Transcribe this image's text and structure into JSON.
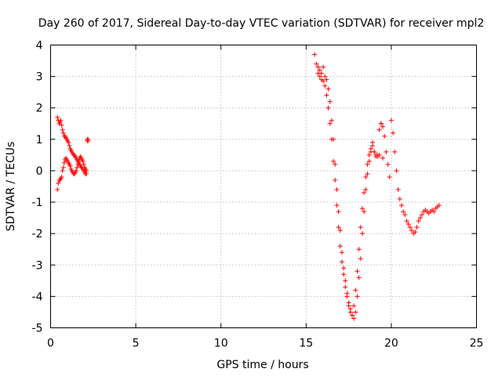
{
  "chart_data": {
    "type": "scatter",
    "title": "Day 260 of 2017, Sidereal Day-to-day VTEC variation (SDTVAR) for receiver mpl2",
    "xlabel": "GPS time / hours",
    "ylabel": "SDTVAR / TECUs",
    "xlim": [
      0,
      25
    ],
    "ylim": [
      -5,
      4
    ],
    "x_ticks": [
      "0",
      "5",
      "10",
      "15",
      "20",
      "25"
    ],
    "y_ticks": [
      "4",
      "3",
      "2",
      "1",
      "0",
      "-1",
      "-2",
      "-3",
      "-4",
      "-5"
    ],
    "grid": true,
    "marker": "plus",
    "marker_color": "#ff0000",
    "series": [
      {
        "x": [
          0.4,
          0.45,
          0.5,
          0.55,
          0.6,
          0.65,
          0.7,
          0.75,
          0.8,
          0.85,
          0.9,
          0.95,
          1.0,
          1.05,
          1.1,
          1.15,
          1.2,
          1.25,
          1.3,
          1.35,
          1.4,
          1.45,
          1.5,
          1.55,
          1.6,
          1.65,
          1.7,
          1.75,
          1.8,
          1.85,
          1.9,
          1.95,
          2.0,
          2.05,
          2.1,
          2.15,
          2.2
        ],
        "y": [
          1.7,
          1.6,
          1.5,
          1.55,
          1.6,
          1.45,
          1.3,
          1.2,
          1.1,
          1.1,
          1.05,
          1.0,
          0.95,
          0.9,
          0.8,
          0.7,
          0.65,
          0.6,
          0.55,
          0.5,
          0.5,
          0.45,
          0.4,
          0.35,
          0.3,
          0.25,
          0.2,
          0.15,
          0.1,
          0.1,
          0.05,
          0.0,
          -0.05,
          -0.1,
          -0.1,
          1.0,
          0.95
        ]
      },
      {
        "x": [
          0.4,
          0.45,
          0.5,
          0.55,
          0.6,
          0.65,
          0.7,
          0.75,
          0.8,
          0.85,
          0.9,
          0.95,
          1.0,
          1.05,
          1.1,
          1.15,
          1.2,
          1.25,
          1.3,
          1.35,
          1.4,
          1.45,
          1.5,
          1.55,
          1.6,
          1.65,
          1.7,
          1.75,
          1.8,
          1.85,
          1.9,
          1.95,
          2.0,
          2.05,
          2.1,
          2.15,
          2.2
        ],
        "y": [
          -0.6,
          -0.4,
          -0.3,
          -0.3,
          -0.25,
          -0.2,
          0.0,
          0.1,
          0.25,
          0.35,
          0.4,
          0.35,
          0.3,
          0.25,
          0.2,
          0.15,
          0.05,
          0.0,
          -0.05,
          -0.1,
          -0.1,
          -0.05,
          0.0,
          0.1,
          0.2,
          0.3,
          0.4,
          0.45,
          0.4,
          0.35,
          0.3,
          0.2,
          0.1,
          0.05,
          0.0,
          0.95,
          1.0
        ]
      },
      {
        "x": [
          15.5,
          15.6,
          15.7,
          15.8,
          15.9,
          16.0,
          16.1,
          16.2,
          16.3,
          16.4,
          16.5,
          16.6,
          16.7,
          16.8,
          16.9,
          17.0,
          17.1,
          17.2,
          17.3,
          17.4,
          17.5,
          17.6,
          17.7,
          17.8,
          17.9,
          18.0,
          18.1,
          18.2,
          18.3,
          18.4,
          18.5,
          18.6,
          18.7,
          18.8,
          18.9,
          19.0,
          19.1,
          19.2,
          19.3,
          19.4,
          19.5,
          19.6,
          19.7,
          19.8,
          19.9,
          20.0,
          20.1,
          20.2,
          20.3,
          20.4,
          20.5,
          20.6,
          20.7,
          20.8,
          20.9,
          21.0,
          21.1,
          21.2,
          21.3,
          21.4,
          21.5,
          21.6,
          21.7,
          21.8,
          21.9,
          22.0,
          22.1,
          22.2,
          22.3,
          22.4,
          22.5,
          22.6,
          22.7,
          22.8
        ],
        "y": [
          3.7,
          3.4,
          3.3,
          3.2,
          3.1,
          3.3,
          3.0,
          2.9,
          2.6,
          2.2,
          1.6,
          1.0,
          0.2,
          -0.6,
          -1.3,
          -1.9,
          -2.6,
          -3.1,
          -3.5,
          -3.9,
          -4.2,
          -4.4,
          -4.6,
          -4.7,
          -4.5,
          -4.0,
          -3.4,
          -2.8,
          -2.0,
          -1.3,
          -0.6,
          -0.1,
          0.3,
          0.6,
          0.8,
          0.6,
          0.5,
          0.45,
          0.5,
          1.5,
          1.4,
          1.1,
          0.6,
          0.2,
          -0.2,
          1.6,
          1.2,
          0.6,
          0.0,
          -0.6,
          -0.9,
          -1.1,
          -1.3,
          -1.4,
          -1.6,
          -1.7,
          -1.8,
          -1.9,
          -2.0,
          -1.95,
          -1.8,
          -1.6,
          -1.5,
          -1.4,
          -1.3,
          -1.25,
          -1.3,
          -1.35,
          -1.3,
          -1.25,
          -1.3,
          -1.2,
          -1.15,
          -1.1
        ]
      },
      {
        "x": [
          15.7,
          15.8,
          15.9,
          16.0,
          16.1,
          16.2,
          16.3,
          16.4,
          16.5,
          16.6,
          16.7,
          16.8,
          16.9,
          17.0,
          17.1,
          17.2,
          17.3,
          17.4,
          17.5,
          17.6,
          17.7,
          17.8,
          17.9,
          18.0,
          18.1,
          18.2,
          18.3,
          18.4,
          18.5,
          18.6,
          18.7,
          18.8,
          18.9,
          19.0,
          19.1,
          19.2,
          19.3,
          19.4,
          19.5
        ],
        "y": [
          3.1,
          3.0,
          2.9,
          2.85,
          2.7,
          2.4,
          2.0,
          1.5,
          1.0,
          0.3,
          -0.3,
          -1.1,
          -1.8,
          -2.4,
          -2.9,
          -3.3,
          -3.7,
          -4.0,
          -4.3,
          -4.5,
          -4.6,
          -4.3,
          -3.8,
          -3.2,
          -2.5,
          -1.8,
          -1.2,
          -0.7,
          -0.2,
          0.2,
          0.5,
          0.7,
          0.9,
          0.6,
          0.45,
          0.5,
          1.3,
          1.5,
          0.4
        ]
      }
    ]
  }
}
